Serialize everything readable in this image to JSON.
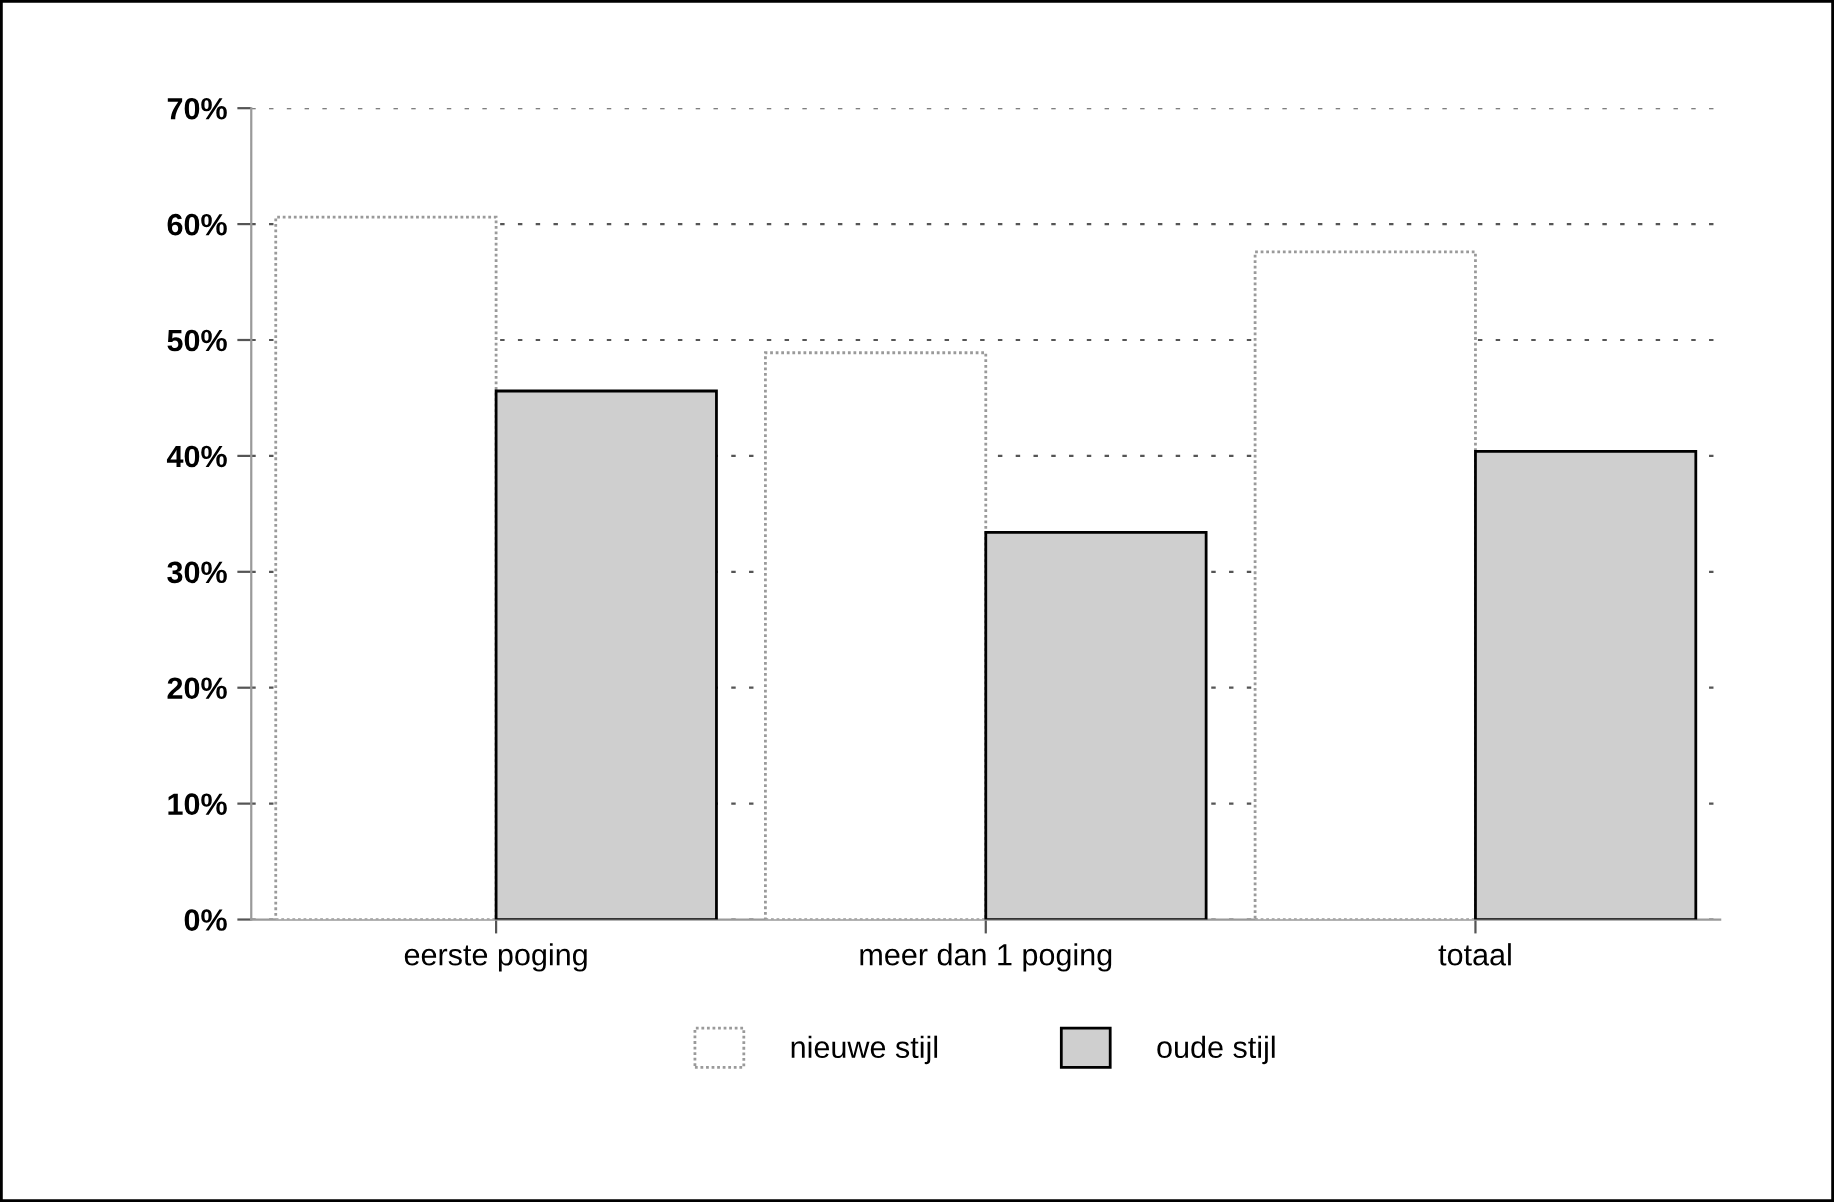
{
  "chart_data": {
    "type": "bar",
    "categories": [
      "eerste poging",
      "meer dan 1 poging",
      "totaal"
    ],
    "series": [
      {
        "name": "nieuwe stijl",
        "color": "#ffffff",
        "values": [
          60.6,
          48.9,
          57.6
        ]
      },
      {
        "name": "oude stijl",
        "color": "#cfcfcf",
        "values": [
          45.6,
          33.4,
          40.4
        ]
      }
    ],
    "ylim": [
      0,
      70
    ],
    "yticks": [
      {
        "value": 0,
        "label": "0%"
      },
      {
        "value": 10,
        "label": "10%"
      },
      {
        "value": 20,
        "label": "20%"
      },
      {
        "value": 30,
        "label": "30%"
      },
      {
        "value": 40,
        "label": "40%"
      },
      {
        "value": 50,
        "label": "50%"
      },
      {
        "value": 60,
        "label": "60%"
      },
      {
        "value": 70,
        "label": "70%"
      }
    ],
    "grid": "y",
    "legend": "bottom"
  }
}
